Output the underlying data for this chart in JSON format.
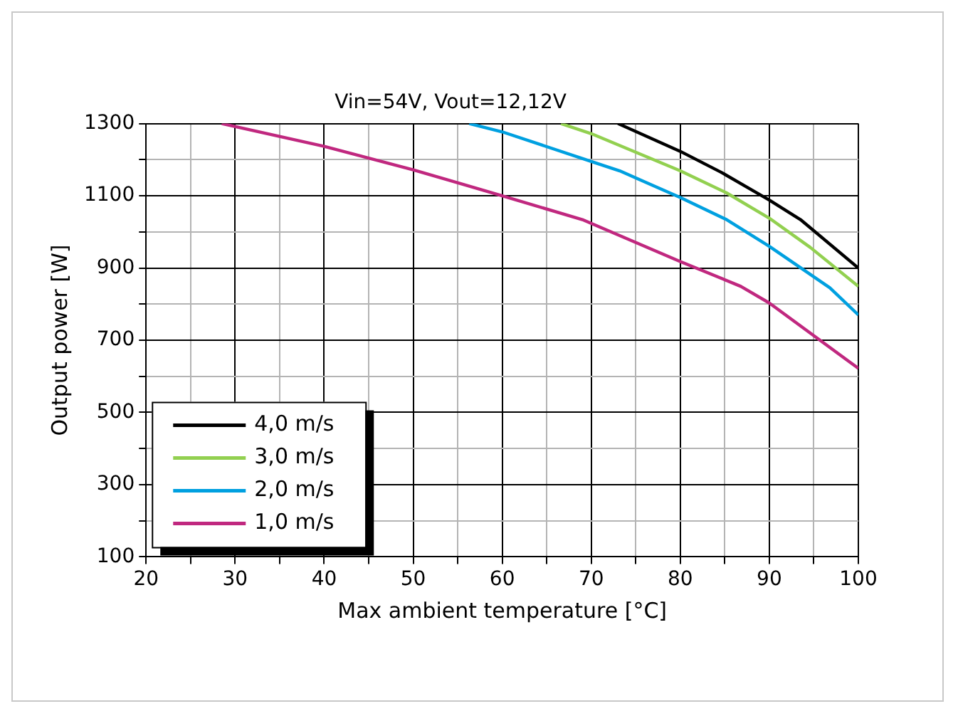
{
  "chart_data": {
    "type": "line",
    "title": "Vin=54V, Vout=12,12V",
    "xlabel": "Max ambient temperature [°C]",
    "ylabel": "Output power [W]",
    "xlim": [
      20,
      100
    ],
    "ylim": [
      100,
      1300
    ],
    "xticks": [
      20,
      {
        "value": 25,
        "label": null
      },
      30,
      {
        "value": 35,
        "label": null
      },
      40,
      {
        "value": 45,
        "label": null
      },
      50,
      {
        "value": 55,
        "label": null
      },
      60,
      {
        "value": 65,
        "label": null
      },
      70,
      {
        "value": 75,
        "label": null
      },
      80,
      {
        "value": 85,
        "label": null
      },
      90,
      {
        "value": 95,
        "label": null
      },
      100
    ],
    "yticks": [
      100,
      {
        "value": 200,
        "label": null
      },
      300,
      {
        "value": 400,
        "label": null
      },
      500,
      {
        "value": 600,
        "label": null
      },
      700,
      {
        "value": 800,
        "label": null
      },
      900,
      {
        "value": 1000,
        "label": null
      },
      1100,
      {
        "value": 1200,
        "label": null
      },
      1300
    ],
    "grid": true,
    "legend": "bottom left",
    "marker": "none",
    "line_style": "solid",
    "series": [
      {
        "name": "4,0 m/s",
        "color": "#000000",
        "x": [
          73,
          80,
          84.6,
          90,
          93.5,
          100
        ],
        "values": [
          1300,
          1223,
          1165,
          1088,
          1034,
          900
        ]
      },
      {
        "name": "3,0 m/s",
        "color": "#92d050",
        "x": [
          66.6,
          70,
          80,
          85.2,
          90,
          94.6,
          100
        ],
        "values": [
          1300,
          1272,
          1169,
          1108,
          1038,
          957,
          849
        ]
      },
      {
        "name": "2,0 m/s",
        "color": "#00a0e0",
        "x": [
          56.3,
          60,
          70,
          73.2,
          80,
          85.2,
          90,
          96.8,
          100
        ],
        "values": [
          1300,
          1277,
          1195,
          1169,
          1095,
          1034,
          960,
          845,
          770
        ]
      },
      {
        "name": "1,0 m/s",
        "color": "#c0287f",
        "x": [
          28.5,
          40,
          50,
          60,
          69,
          80,
          86.8,
          90,
          100
        ],
        "values": [
          1300,
          1237,
          1172,
          1100,
          1034,
          918,
          849,
          803,
          622
        ]
      }
    ]
  }
}
